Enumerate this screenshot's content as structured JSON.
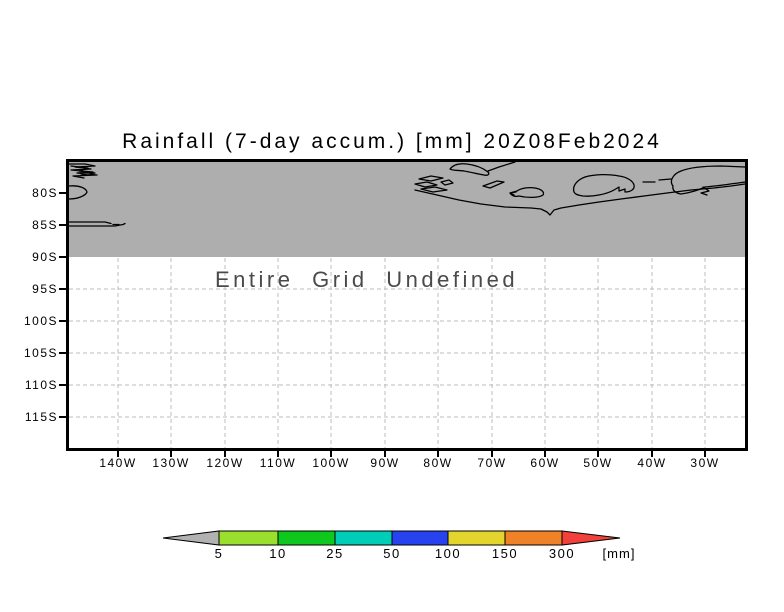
{
  "title": "Rainfall (7-day accum.) [mm] 20Z08Feb2024",
  "map": {
    "undefined_label": "Entire Grid Undefined",
    "lat_labels": [
      "80S",
      "85S",
      "90S",
      "95S",
      "100S",
      "105S",
      "110S",
      "115S"
    ],
    "lon_labels": [
      "140W",
      "130W",
      "120W",
      "110W",
      "100W",
      "90W",
      "80W",
      "70W",
      "60W",
      "50W",
      "40W",
      "30W"
    ]
  },
  "colorbar": {
    "values": [
      "5",
      "10",
      "25",
      "50",
      "100",
      "150",
      "300"
    ],
    "unit": "[mm]",
    "triangle_left_color": "#b2b2b2",
    "band_colors": [
      "#9ade2e",
      "#0fc81e",
      "#00cdb7",
      "#2742ef",
      "#e3d52e",
      "#ef8226"
    ],
    "triangle_right_color": "#f2413a"
  },
  "colors": {
    "shaded_region": "#aeaeae",
    "gridline": "#bcbcbc",
    "undefined_text": "#4a4a4a",
    "frame": "#000000"
  }
}
